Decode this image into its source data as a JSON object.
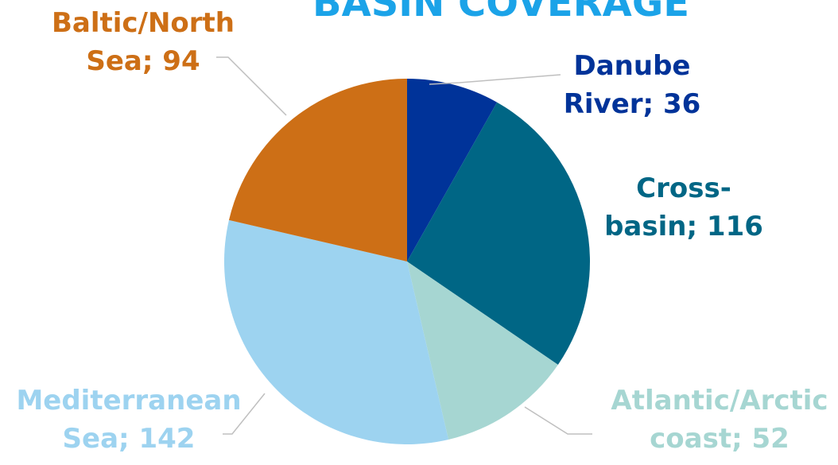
{
  "chart_data": {
    "type": "pie",
    "title": "BASIN COVERAGE",
    "slices": [
      {
        "label_lines": [
          "Danube",
          "River; 36"
        ],
        "category": "Danube River",
        "value": 36,
        "color": "#003399"
      },
      {
        "label_lines": [
          "Cross-",
          "basin; 116"
        ],
        "category": "Cross-basin",
        "value": 116,
        "color": "#006685"
      },
      {
        "label_lines": [
          "Atlantic/Arctic",
          "coast; 52"
        ],
        "category": "Atlantic/Arctic coast",
        "value": 52,
        "color": "#A6D6D2"
      },
      {
        "label_lines": [
          "Mediterranean",
          "Sea; 142"
        ],
        "category": "Mediterranean Sea",
        "value": 142,
        "color": "#9DD3F0"
      },
      {
        "label_lines": [
          "Baltic/North",
          "Sea; 94"
        ],
        "category": "Baltic/North Sea",
        "value": 94,
        "color": "#CD6F16"
      }
    ],
    "colors": {
      "title": "#1BA3E8",
      "danube_label": "#003399",
      "cross_basin_label": "#006685",
      "atlantic_label": "#A6D6D2",
      "mediterranean_label": "#9DD3F0",
      "baltic_label": "#CD6F16",
      "leader_line": "#BFBFBF"
    },
    "start_position": "12 o'clock",
    "direction": "clockwise",
    "legend": "none (data labels outside slices)"
  }
}
